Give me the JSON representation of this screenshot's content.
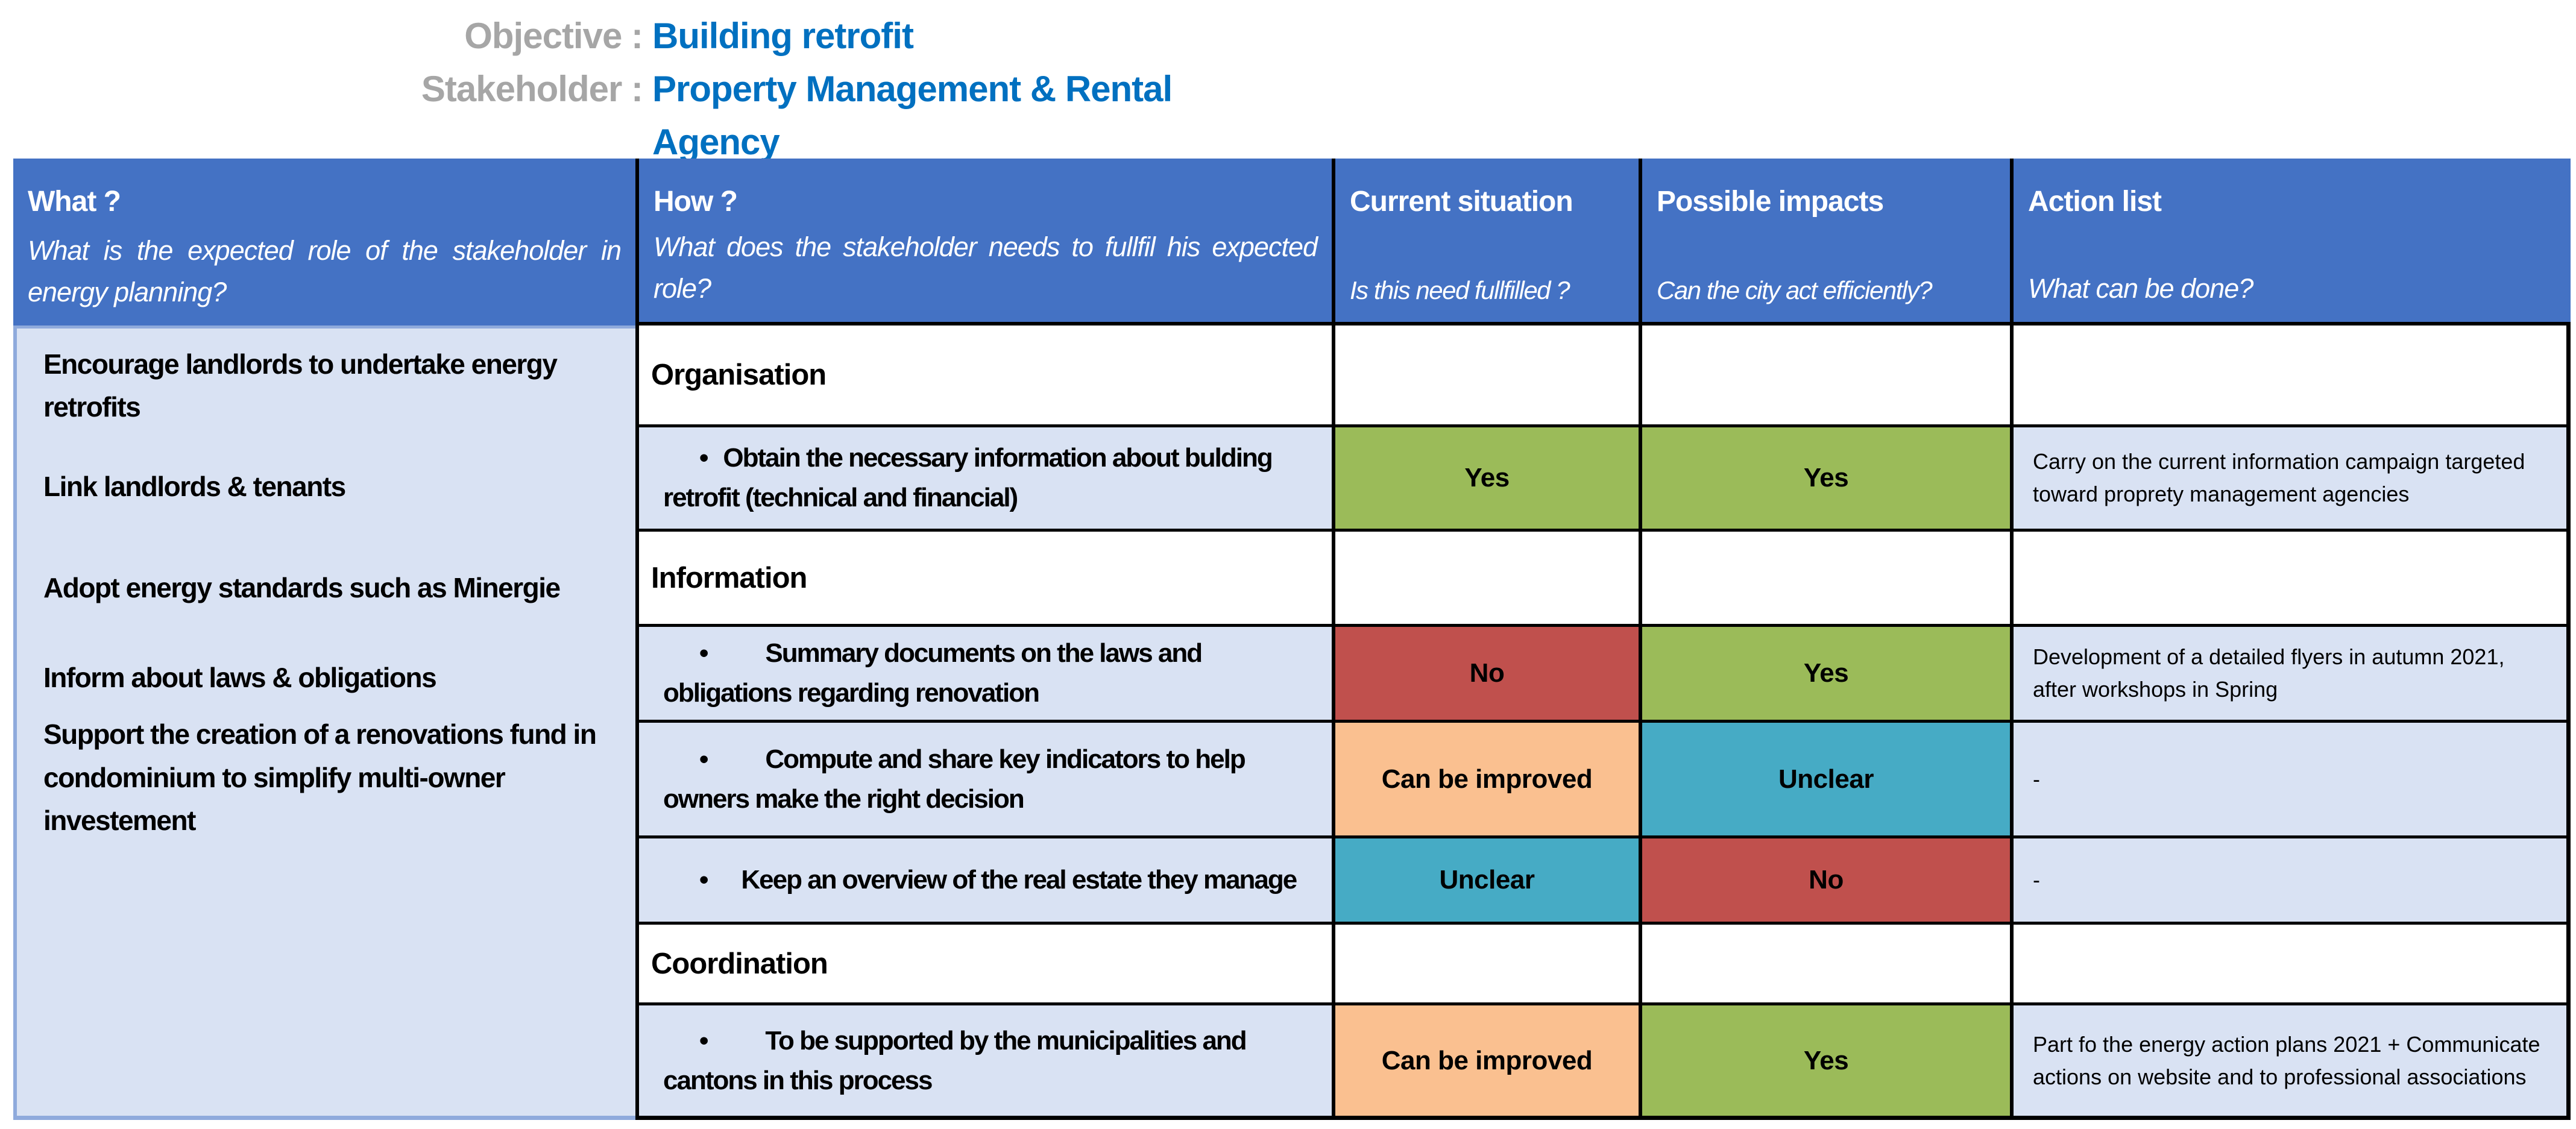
{
  "page": {
    "objective_label": "Objective :",
    "objective_value": "Building retrofit",
    "stakeholder_label": "Stakeholder :",
    "stakeholder_value": "Property Management & Rental Agency"
  },
  "colors": {
    "header_blue": "#4472C4",
    "light_blue": "#D9E2F3",
    "lavender": "#8FAADC",
    "green": "#9BBB59",
    "red": "#C0504D",
    "orange": "#FAC090",
    "teal": "#46ABC5",
    "label_gray": "#A6A6A6",
    "value_blue": "#0070C0",
    "border_black": "#000000"
  },
  "table": {
    "columns": [
      {
        "title": "What ?",
        "subtitle": "What is the expected role of the stakeholder in energy planning?"
      },
      {
        "title": "How ?",
        "subtitle": "What does the stakeholder needs to fullfil his expected role?"
      },
      {
        "title": "Current situation",
        "subtitle": "Is this need fullfilled ?"
      },
      {
        "title": "Possible impacts",
        "subtitle": "Can the city act efficiently?"
      },
      {
        "title": "Action list",
        "subtitle": "What can be done?"
      }
    ],
    "what_items": [
      "Encourage landlords to undertake energy retrofits",
      "Link landlords & tenants",
      "Adopt energy standards such as Minergie",
      "Inform about laws & obligations",
      "Support the creation of a renovations fund in condominium to simplify multi-owner investement"
    ],
    "rows": [
      {
        "type": "category",
        "how": "Organisation",
        "current": "",
        "impacts": "",
        "action": ""
      },
      {
        "type": "bullet",
        "how": "Obtain the necessary information about bulding retrofit (technical and financial)",
        "current": "Yes",
        "current_color": "green",
        "impacts": "Yes",
        "impacts_color": "green",
        "action": "Carry on the current information campaign targeted toward proprety management agencies"
      },
      {
        "type": "category",
        "how": "Information",
        "current": "",
        "impacts": "",
        "action": ""
      },
      {
        "type": "bullet",
        "how": "Summary documents on the laws and obligations regarding renovation",
        "current": "No",
        "current_color": "red",
        "impacts": "Yes",
        "impacts_color": "green",
        "action": "Development of a detailed flyers in autumn 2021, after workshops in Spring"
      },
      {
        "type": "bullet",
        "how": "Compute and share key indicators to help owners make the right decision",
        "current": "Can be improved",
        "current_color": "orange",
        "impacts": "Unclear",
        "impacts_color": "teal",
        "action": "-"
      },
      {
        "type": "bullet",
        "how": "Keep an overview of the real estate they manage",
        "current": "Unclear",
        "current_color": "teal",
        "impacts": "No",
        "impacts_color": "red",
        "action": "-"
      },
      {
        "type": "category",
        "how": "Coordination",
        "current": "",
        "impacts": "",
        "action": ""
      },
      {
        "type": "bullet",
        "how": "To be supported by the municipalities and cantons in this process",
        "current": "Can be improved",
        "current_color": "orange",
        "impacts": "Yes",
        "impacts_color": "green",
        "action": "Part fo the energy action plans 2021 + Communicate actions on website and to professional associations"
      }
    ]
  }
}
